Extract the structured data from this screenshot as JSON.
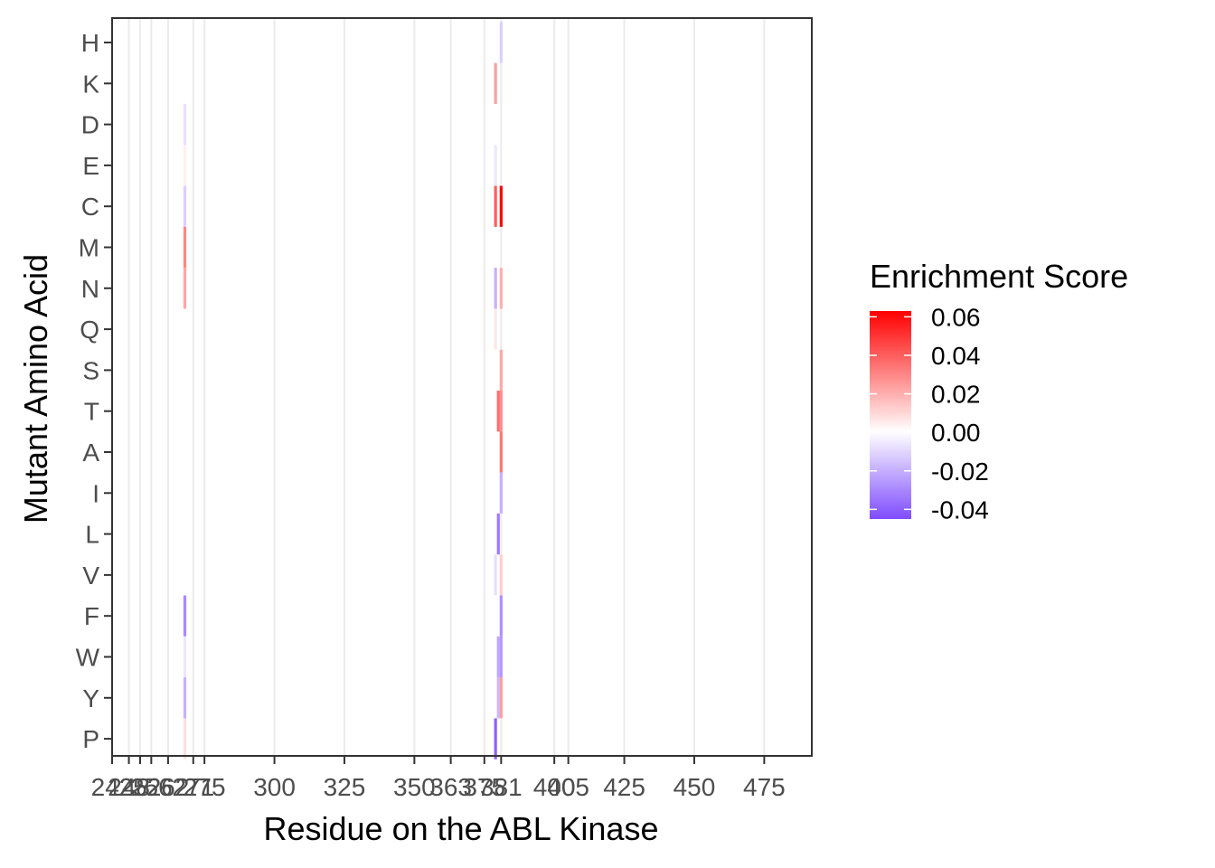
{
  "chart_data": {
    "type": "heatmap",
    "xlabel": "Residue on the ABL Kinase",
    "ylabel": "Mutant Amino Acid",
    "xlim": [
      242,
      492
    ],
    "x_ticks": [
      242,
      248,
      252,
      256,
      262,
      271,
      275,
      300,
      325,
      350,
      363,
      375,
      381,
      400,
      405,
      425,
      450,
      475
    ],
    "y_categories": [
      "H",
      "K",
      "D",
      "E",
      "C",
      "M",
      "N",
      "Q",
      "S",
      "T",
      "A",
      "I",
      "L",
      "V",
      "F",
      "W",
      "Y",
      "P"
    ],
    "grid": true,
    "legend": {
      "title": "Enrichment Score",
      "placement": "right",
      "ticks": [
        0.06,
        0.04,
        0.02,
        0.0,
        -0.02,
        -0.04
      ],
      "tick_labels": [
        "0.06",
        "0.04",
        "0.02",
        "0.00",
        "-0.02",
        "-0.04"
      ],
      "min": -0.045,
      "max": 0.063,
      "low_color": "#7f4cff",
      "mid_color": "#ffffff",
      "high_color": "#ff0000"
    },
    "cells": [
      {
        "x": 268,
        "y": "D",
        "value": -0.008
      },
      {
        "x": 268,
        "y": "E",
        "value": 0.004
      },
      {
        "x": 268,
        "y": "C",
        "value": -0.012
      },
      {
        "x": 268,
        "y": "M",
        "value": 0.03
      },
      {
        "x": 268,
        "y": "N",
        "value": 0.022
      },
      {
        "x": 268,
        "y": "F",
        "value": -0.03
      },
      {
        "x": 268,
        "y": "W",
        "value": -0.006
      },
      {
        "x": 268,
        "y": "Y",
        "value": -0.02
      },
      {
        "x": 268,
        "y": "P",
        "value": 0.008
      },
      {
        "x": 379,
        "y": "K",
        "value": 0.024
      },
      {
        "x": 379,
        "y": "E",
        "value": -0.006
      },
      {
        "x": 379,
        "y": "C",
        "value": 0.04
      },
      {
        "x": 379,
        "y": "N",
        "value": -0.02
      },
      {
        "x": 379,
        "y": "Q",
        "value": 0.006
      },
      {
        "x": 379,
        "y": "V",
        "value": -0.008
      },
      {
        "x": 379,
        "y": "P",
        "value": -0.04
      },
      {
        "x": 380,
        "y": "T",
        "value": 0.036
      },
      {
        "x": 380,
        "y": "L",
        "value": -0.034
      },
      {
        "x": 380,
        "y": "W",
        "value": -0.022
      },
      {
        "x": 380,
        "y": "Y",
        "value": -0.018
      },
      {
        "x": 381,
        "y": "H",
        "value": -0.012
      },
      {
        "x": 381,
        "y": "C",
        "value": 0.062
      },
      {
        "x": 381,
        "y": "N",
        "value": 0.02
      },
      {
        "x": 381,
        "y": "S",
        "value": 0.022
      },
      {
        "x": 381,
        "y": "T",
        "value": 0.028
      },
      {
        "x": 381,
        "y": "A",
        "value": 0.034
      },
      {
        "x": 381,
        "y": "I",
        "value": -0.02
      },
      {
        "x": 381,
        "y": "V",
        "value": 0.012
      },
      {
        "x": 381,
        "y": "F",
        "value": -0.028
      },
      {
        "x": 381,
        "y": "W",
        "value": -0.026
      },
      {
        "x": 381,
        "y": "Y",
        "value": 0.024
      }
    ]
  }
}
